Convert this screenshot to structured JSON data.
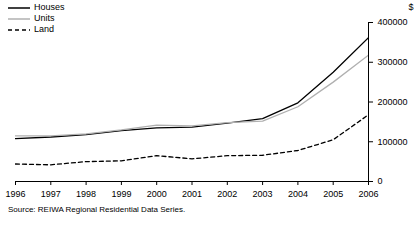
{
  "chart_data": {
    "type": "line",
    "source": "Source: REIWA Regional Residential Data Series.",
    "y_label": "$",
    "x": [
      1996,
      1997,
      1998,
      1999,
      2000,
      2001,
      2002,
      2003,
      2004,
      2005,
      2006
    ],
    "series": [
      {
        "name": "Houses",
        "color": "#000000",
        "line_style": "solid",
        "values": [
          108000,
          112000,
          118000,
          128000,
          135000,
          137000,
          147000,
          158000,
          198000,
          275000,
          362000
        ]
      },
      {
        "name": "Units",
        "color": "#b0b0b0",
        "line_style": "solid",
        "values": [
          115000,
          115000,
          120000,
          130000,
          142000,
          140000,
          148000,
          152000,
          188000,
          250000,
          318000
        ]
      },
      {
        "name": "Land",
        "color": "#000000",
        "line_style": "dashed",
        "values": [
          44000,
          42000,
          50000,
          52000,
          65000,
          57000,
          65000,
          66000,
          78000,
          105000,
          168000
        ]
      }
    ],
    "xlim": [
      1996,
      2006
    ],
    "xticks": [
      1996,
      1997,
      1998,
      1999,
      2000,
      2001,
      2002,
      2003,
      2004,
      2005,
      2006
    ],
    "ylim": [
      0,
      400000
    ],
    "yticks": [
      0,
      100000,
      200000,
      300000,
      400000
    ],
    "grid": false,
    "legend": "top-left"
  }
}
